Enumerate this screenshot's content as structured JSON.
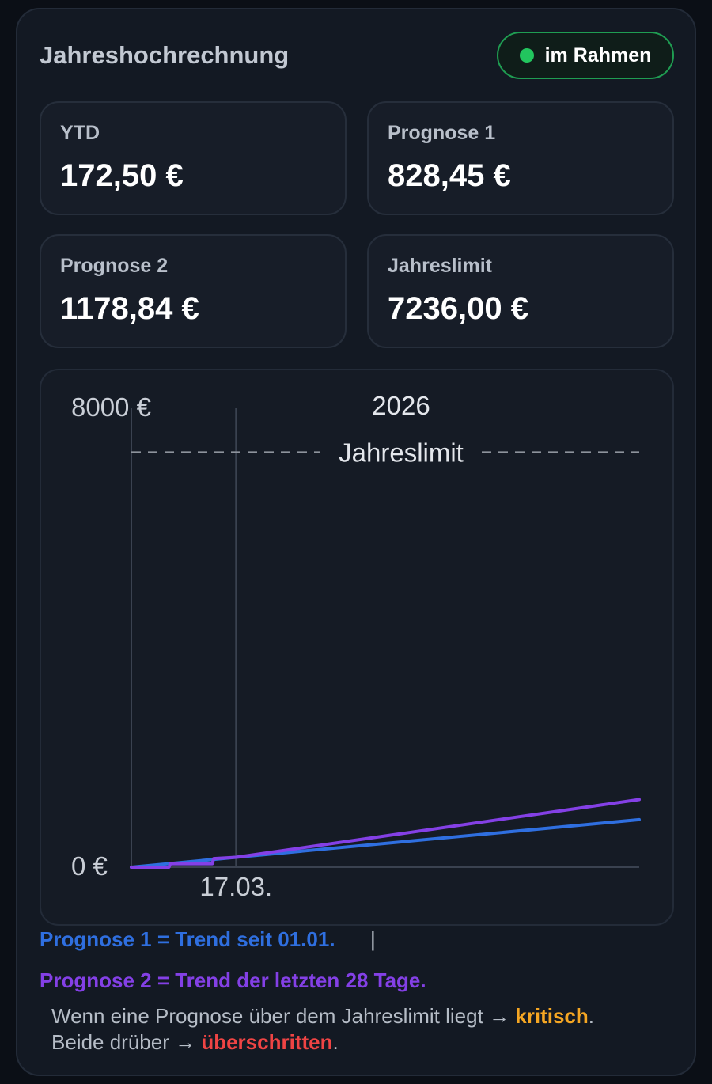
{
  "header": {
    "title": "Jahreshochrechnung",
    "badge_label": "im Rahmen",
    "badge_color": "#22c55e"
  },
  "cards": [
    {
      "label": "YTD",
      "value": "172,50 €"
    },
    {
      "label": "Prognose 1",
      "value": "828,45 €"
    },
    {
      "label": "Prognose 2",
      "value": "1178,84 €"
    },
    {
      "label": "Jahreslimit",
      "value": "7236,00 €"
    }
  ],
  "chart_data": {
    "type": "line",
    "title": "2026",
    "ylim": [
      0,
      8000
    ],
    "xlim": [
      "2026-01-01",
      "2026-12-31"
    ],
    "y_tick_labels": [
      "8000 €",
      "0 €"
    ],
    "today_marker": {
      "date": "2026-03-17",
      "label": "17.03."
    },
    "limit": {
      "value": 7236,
      "label": "Jahreslimit"
    },
    "grid": false,
    "series": [
      {
        "name": "Prognose 1",
        "color": "#2f6fe0",
        "points": [
          [
            "2026-01-01",
            0
          ],
          [
            "2026-03-17",
            172.5
          ],
          [
            "2026-12-31",
            828.45
          ]
        ]
      },
      {
        "name": "Prognose 2",
        "color": "#8440e6",
        "points": [
          [
            "2026-01-01",
            0
          ],
          [
            "2026-01-28",
            0
          ],
          [
            "2026-01-29",
            60
          ],
          [
            "2026-02-28",
            60
          ],
          [
            "2026-03-01",
            150
          ],
          [
            "2026-03-17",
            172.5
          ],
          [
            "2026-12-31",
            1178.84
          ]
        ]
      }
    ]
  },
  "legend": {
    "line1": "Prognose 1 = Trend seit 01.01.",
    "separator": "|",
    "line2": "Prognose 2 = Trend der letzten 28 Tage."
  },
  "note": {
    "part1": "Wenn eine Prognose über dem Jahreslimit liegt → ",
    "critical": "kritisch",
    "part2": ".",
    "part3": "Beide drüber → ",
    "exceeded": "überschritten",
    "part4": ".",
    "critical_color": "#f5a623",
    "exceeded_color": "#ef4444"
  }
}
